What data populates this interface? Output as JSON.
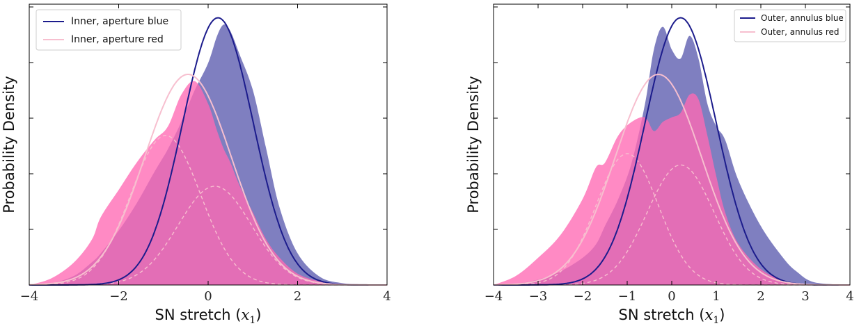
{
  "chart_data": [
    {
      "type": "area",
      "xlabel": "SN stretch",
      "xlabel_symbol": "x",
      "xlabel_sub": "1",
      "ylabel": "Probability Density",
      "xlim": [
        -4,
        4
      ],
      "ylim": [
        0,
        0.62
      ],
      "xticks": [
        -4,
        -2,
        0,
        2,
        4
      ],
      "grid": false,
      "legend_position": "top-left",
      "x": [
        -4,
        -3.5,
        -3,
        -2.6,
        -2.4,
        -2,
        -1.6,
        -1.2,
        -0.9,
        -0.6,
        -0.3,
        0,
        0.2,
        0.35,
        0.5,
        0.7,
        1.0,
        1.3,
        1.6,
        2.0,
        2.5,
        3.0,
        3.5,
        4
      ],
      "filled_series": [
        {
          "color": "#3b3b9e",
          "values": [
            0.0,
            0.004,
            0.02,
            0.05,
            0.07,
            0.12,
            0.18,
            0.25,
            0.3,
            0.36,
            0.43,
            0.49,
            0.55,
            0.575,
            0.56,
            0.51,
            0.43,
            0.3,
            0.17,
            0.07,
            0.018,
            0.004,
            0.001,
            0.0
          ]
        },
        {
          "color": "#ff69b4",
          "values": [
            0.0,
            0.015,
            0.05,
            0.1,
            0.15,
            0.21,
            0.27,
            0.32,
            0.35,
            0.42,
            0.45,
            0.4,
            0.34,
            0.3,
            0.27,
            0.22,
            0.16,
            0.1,
            0.06,
            0.025,
            0.008,
            0.002,
            0.0,
            0.0
          ]
        }
      ],
      "series": [
        {
          "name": "Inner, aperture blue",
          "color": "#1c1c8c",
          "mu": 0.22,
          "sigma": 0.79,
          "peak": 0.59
        },
        {
          "name": "Inner, aperture red",
          "color": "#f7bfcf",
          "mu": -0.45,
          "sigma": 0.97,
          "peak": 0.465
        }
      ],
      "components": [
        {
          "color": "#f7bfcf",
          "mu": -0.95,
          "sigma": 0.78,
          "peak": 0.33
        },
        {
          "color": "#f7bfcf",
          "mu": 0.15,
          "sigma": 0.82,
          "peak": 0.218
        }
      ]
    },
    {
      "type": "area",
      "xlabel": "SN stretch",
      "xlabel_symbol": "x",
      "xlabel_sub": "1",
      "ylabel": "Probability Density",
      "xlim": [
        -4,
        4
      ],
      "ylim": [
        0,
        0.62
      ],
      "xticks": [
        -4,
        -3,
        -2,
        -1,
        0,
        1,
        2,
        3,
        4
      ],
      "grid": false,
      "legend_position": "top-right",
      "x": [
        -4,
        -3.5,
        -3,
        -2.5,
        -2.0,
        -1.7,
        -1.5,
        -1.2,
        -0.9,
        -0.6,
        -0.4,
        -0.2,
        0,
        0.2,
        0.4,
        0.6,
        0.8,
        1.0,
        1.2,
        1.5,
        2.0,
        2.5,
        2.8,
        3.2,
        4
      ],
      "filled_series": [
        {
          "color": "#3b3b9e",
          "values": [
            0.0,
            0.003,
            0.012,
            0.03,
            0.06,
            0.09,
            0.13,
            0.19,
            0.27,
            0.4,
            0.52,
            0.57,
            0.52,
            0.5,
            0.55,
            0.5,
            0.4,
            0.35,
            0.32,
            0.23,
            0.13,
            0.06,
            0.03,
            0.006,
            0.0
          ]
        },
        {
          "color": "#ff69b4",
          "values": [
            0.0,
            0.02,
            0.06,
            0.11,
            0.19,
            0.26,
            0.27,
            0.33,
            0.36,
            0.37,
            0.34,
            0.36,
            0.37,
            0.38,
            0.42,
            0.41,
            0.33,
            0.24,
            0.16,
            0.09,
            0.035,
            0.01,
            0.004,
            0.001,
            0.0
          ]
        }
      ],
      "series": [
        {
          "name": "Outer, annulus blue",
          "color": "#1c1c8c",
          "mu": 0.2,
          "sigma": 0.8,
          "peak": 0.59
        },
        {
          "name": "Outer, annulus red",
          "color": "#f7bfcf",
          "mu": -0.3,
          "sigma": 0.97,
          "peak": 0.465
        }
      ],
      "components": [
        {
          "color": "#f7bfcf",
          "mu": -1.0,
          "sigma": 0.7,
          "peak": 0.29
        },
        {
          "color": "#f7bfcf",
          "mu": 0.2,
          "sigma": 0.75,
          "peak": 0.265
        }
      ]
    }
  ]
}
